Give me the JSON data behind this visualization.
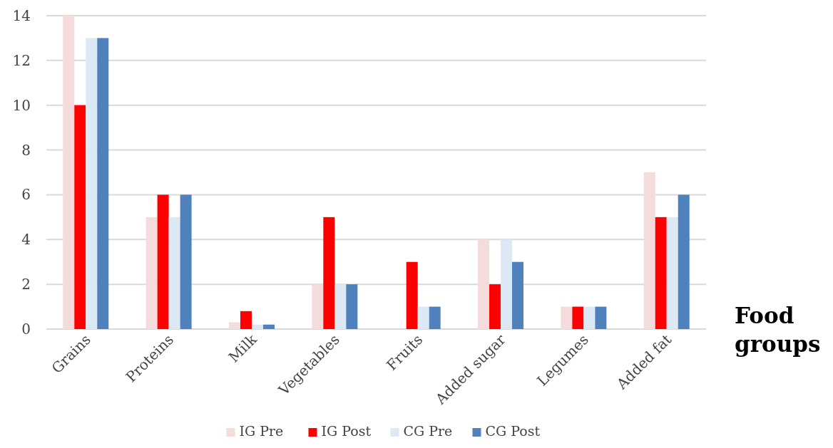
{
  "chart_data": {
    "type": "bar",
    "xlabel": "Food groups",
    "categories": [
      "Grains",
      "Proteins",
      "Milk",
      "Vegetables",
      "Fruits",
      "Added sugar",
      "Legumes",
      "Added fat"
    ],
    "series": [
      {
        "name": "IG Pre",
        "color": "#f4dcdc",
        "values": [
          14,
          5,
          0.3,
          2,
          0,
          4,
          1,
          7
        ]
      },
      {
        "name": "IG Post",
        "color": "#ff0000",
        "values": [
          10,
          6,
          0.8,
          5,
          3,
          2,
          1,
          5
        ]
      },
      {
        "name": "CG Pre",
        "color": "#dde8f5",
        "values": [
          13,
          5,
          0.2,
          2,
          1,
          4,
          1,
          5
        ]
      },
      {
        "name": "CG Post",
        "color": "#4f81bd",
        "values": [
          13,
          6,
          0.2,
          2,
          1,
          3,
          1,
          6
        ]
      }
    ],
    "ylim": [
      0,
      14
    ],
    "yticks": [
      0,
      2,
      4,
      6,
      8,
      10,
      12,
      14
    ],
    "grid": "y",
    "legend": "bottom"
  }
}
